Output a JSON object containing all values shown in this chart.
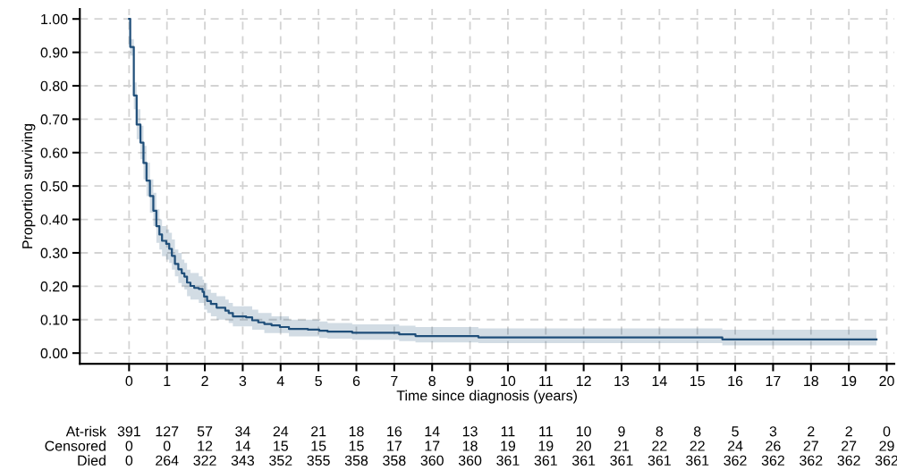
{
  "chart_data": {
    "type": "step",
    "xlabel": "Time since diagnosis (years)",
    "ylabel": "Proportion surviving",
    "x": [
      0,
      0.03,
      0.125,
      0.2,
      0.3,
      0.38,
      0.46,
      0.55,
      0.64,
      0.72,
      0.8,
      0.87,
      0.98,
      1.06,
      1.13,
      1.21,
      1.3,
      1.39,
      1.46,
      1.53,
      1.62,
      1.72,
      1.84,
      1.94,
      1.98,
      2.06,
      2.16,
      2.31,
      2.54,
      2.63,
      2.74,
      3.09,
      3.25,
      3.41,
      3.57,
      3.76,
      3.98,
      4.22,
      4.72,
      5.02,
      5.24,
      5.89,
      7.13,
      7.56,
      9.22,
      15.66,
      19.73
    ],
    "series": [
      {
        "color": "#1f4e79",
        "values": [
          1.0,
          0.916,
          0.771,
          0.684,
          0.63,
          0.569,
          0.516,
          0.47,
          0.426,
          0.38,
          0.355,
          0.336,
          0.327,
          0.312,
          0.291,
          0.267,
          0.251,
          0.239,
          0.229,
          0.211,
          0.201,
          0.195,
          0.192,
          0.183,
          0.169,
          0.156,
          0.147,
          0.136,
          0.127,
          0.12,
          0.11,
          0.107,
          0.098,
          0.092,
          0.087,
          0.083,
          0.078,
          0.072,
          0.07,
          0.067,
          0.064,
          0.061,
          0.056,
          0.051,
          0.047,
          0.041,
          0.041
        ],
        "lower": [
          1.0,
          0.89,
          0.73,
          0.64,
          0.58,
          0.52,
          0.47,
          0.42,
          0.38,
          0.33,
          0.31,
          0.29,
          0.28,
          0.27,
          0.25,
          0.23,
          0.21,
          0.2,
          0.19,
          0.17,
          0.16,
          0.16,
          0.15,
          0.15,
          0.13,
          0.12,
          0.11,
          0.1,
          0.1,
          0.09,
          0.08,
          0.08,
          0.07,
          0.07,
          0.06,
          0.06,
          0.06,
          0.05,
          0.05,
          0.045,
          0.043,
          0.04,
          0.036,
          0.032,
          0.03,
          0.023,
          0.023
        ],
        "upper": [
          1.0,
          0.94,
          0.81,
          0.73,
          0.68,
          0.62,
          0.57,
          0.52,
          0.48,
          0.43,
          0.4,
          0.38,
          0.37,
          0.36,
          0.34,
          0.31,
          0.3,
          0.28,
          0.27,
          0.25,
          0.24,
          0.24,
          0.23,
          0.22,
          0.21,
          0.19,
          0.18,
          0.17,
          0.16,
          0.15,
          0.14,
          0.14,
          0.13,
          0.12,
          0.12,
          0.11,
          0.11,
          0.1,
          0.1,
          0.095,
          0.09,
          0.086,
          0.082,
          0.078,
          0.074,
          0.07,
          0.07
        ]
      }
    ],
    "xlim": [
      -1.3,
      20.2
    ],
    "xticks": [
      0,
      1,
      2,
      3,
      4,
      5,
      6,
      7,
      8,
      9,
      10,
      11,
      12,
      13,
      14,
      15,
      16,
      17,
      18,
      19,
      20
    ],
    "ylim": [
      -0.032,
      1.03
    ],
    "yticks": [
      {
        "value": 0,
        "label": "0.00"
      },
      {
        "value": 0.1,
        "label": "0.10"
      },
      {
        "value": 0.2,
        "label": "0.20"
      },
      {
        "value": 0.3,
        "label": "0.30"
      },
      {
        "value": 0.4,
        "label": "0.40"
      },
      {
        "value": 0.5,
        "label": "0.50"
      },
      {
        "value": 0.6,
        "label": "0.60"
      },
      {
        "value": 0.7,
        "label": "0.70"
      },
      {
        "value": 0.8,
        "label": "0.80"
      },
      {
        "value": 0.9,
        "label": "0.90"
      },
      {
        "value": 1,
        "label": "1.00"
      }
    ],
    "grid": true,
    "marker": "none",
    "line_style": "solid",
    "annotations": [
      "At-risk 391 127 57 34 24 21 18 16 14 13 11 11 10 9 8 8 5 3 2 2 0",
      "Censored 0 0 12 14 15 15 15 17 17 18 19 19 20 21 22 22 24 26 27 27 29",
      "Died 0 264 322 343 352 355 358 358 360 360 361 361 361 361 361 361 362 362 362 362 362"
    ]
  }
}
